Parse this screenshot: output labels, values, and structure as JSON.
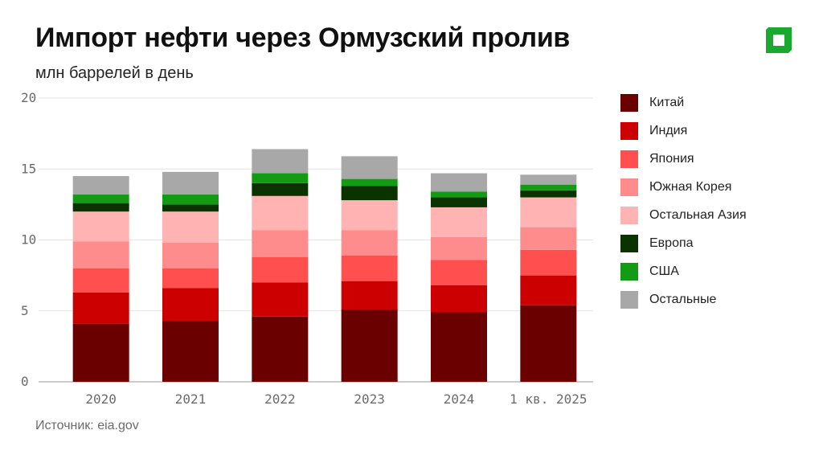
{
  "header": {
    "title": "Импорт нефти через Ормузский пролив",
    "subtitle": "млн баррелей в день",
    "logo_color": "#1aa82e"
  },
  "footer": {
    "source": "Источник: eia.gov"
  },
  "chart_data": {
    "type": "bar",
    "stacked": true,
    "categories": [
      "2020",
      "2021",
      "2022",
      "2023",
      "2024",
      "1 кв. 2025"
    ],
    "ylim": [
      0,
      20
    ],
    "yticks": [
      0,
      5,
      10,
      15,
      20
    ],
    "grid": true,
    "legend_position": "right",
    "series": [
      {
        "name": "Китай",
        "color": "#6b0000",
        "values": [
          4.1,
          4.3,
          4.6,
          5.1,
          4.9,
          5.4
        ]
      },
      {
        "name": "Индия",
        "color": "#cc0000",
        "values": [
          2.2,
          2.3,
          2.4,
          2.0,
          1.9,
          2.1
        ]
      },
      {
        "name": "Япония",
        "color": "#ff4f4f",
        "values": [
          1.7,
          1.4,
          1.8,
          1.8,
          1.8,
          1.8
        ]
      },
      {
        "name": "Южная Корея",
        "color": "#ff8c8c",
        "values": [
          1.9,
          1.8,
          1.9,
          1.8,
          1.6,
          1.6
        ]
      },
      {
        "name": "Остальная Азия",
        "color": "#ffb3b3",
        "values": [
          2.1,
          2.2,
          2.4,
          2.1,
          2.1,
          2.1
        ]
      },
      {
        "name": "Европа",
        "color": "#0b3300",
        "values": [
          0.6,
          0.5,
          0.9,
          1.0,
          0.7,
          0.5
        ]
      },
      {
        "name": "США",
        "color": "#139b13",
        "values": [
          0.6,
          0.7,
          0.7,
          0.5,
          0.4,
          0.4
        ]
      },
      {
        "name": "Остальные",
        "color": "#a8a8a8",
        "values": [
          1.3,
          1.6,
          1.7,
          1.6,
          1.3,
          0.7
        ]
      }
    ]
  }
}
